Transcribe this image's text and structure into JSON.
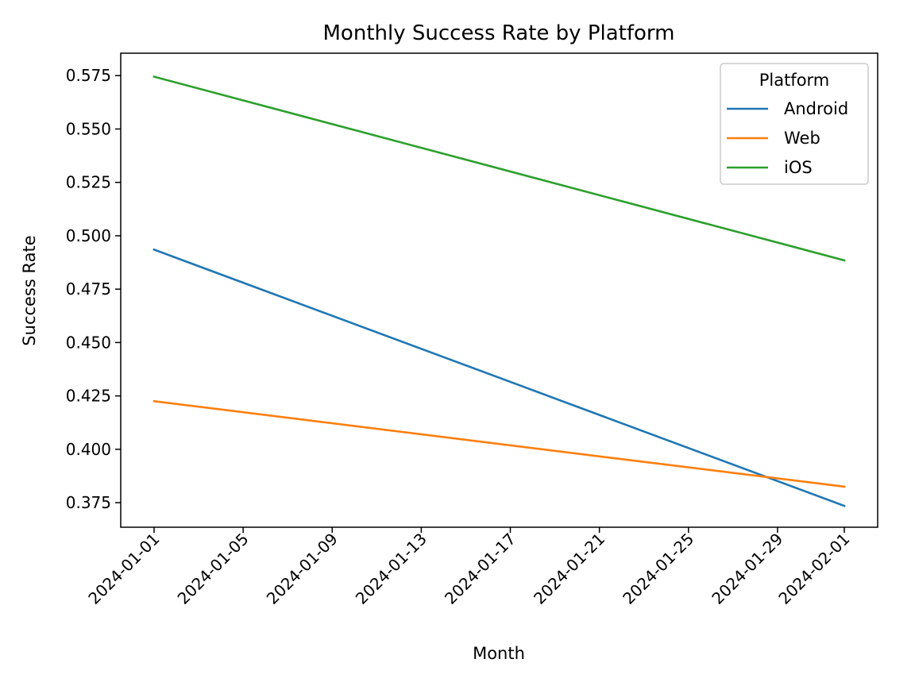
{
  "chart_data": {
    "type": "line",
    "title": "Monthly Success Rate by Platform",
    "xlabel": "Month",
    "ylabel": "Success Rate",
    "x": [
      "2024-01-01",
      "2024-02-01"
    ],
    "xticks": [
      "2024-01-01",
      "2024-01-05",
      "2024-01-09",
      "2024-01-13",
      "2024-01-17",
      "2024-01-21",
      "2024-01-25",
      "2024-01-29",
      "2024-02-01"
    ],
    "yticks": [
      0.375,
      0.4,
      0.425,
      0.45,
      0.475,
      0.5,
      0.525,
      0.55,
      0.575
    ],
    "ytick_labels": [
      "0.375",
      "0.400",
      "0.425",
      "0.450",
      "0.475",
      "0.500",
      "0.525",
      "0.550",
      "0.575"
    ],
    "ylim": [
      0.3635,
      0.5855
    ],
    "legend": {
      "title": "Platform",
      "position": "top-right"
    },
    "series": [
      {
        "name": "Android",
        "values": [
          0.4935,
          0.3735
        ],
        "color": "#1f77b4"
      },
      {
        "name": "Web",
        "values": [
          0.4225,
          0.3825
        ],
        "color": "#ff7f0e"
      },
      {
        "name": "iOS",
        "values": [
          0.5745,
          0.4885
        ],
        "color": "#2ca02c"
      }
    ],
    "grid": false
  }
}
